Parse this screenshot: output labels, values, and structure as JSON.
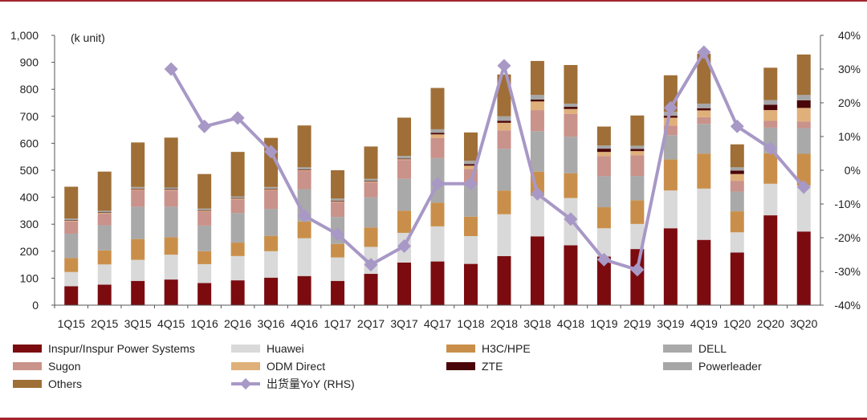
{
  "chart_data": {
    "type": "bar",
    "stacked": true,
    "unit_label": "(k unit)",
    "categories": [
      "1Q15",
      "2Q15",
      "3Q15",
      "4Q15",
      "1Q16",
      "2Q16",
      "3Q16",
      "4Q16",
      "1Q17",
      "2Q17",
      "3Q17",
      "4Q17",
      "1Q18",
      "2Q18",
      "3Q18",
      "4Q18",
      "1Q19",
      "2Q19",
      "3Q19",
      "4Q19",
      "1Q20",
      "2Q20",
      "3Q20"
    ],
    "y_left": {
      "min": 0,
      "max": 1000,
      "ticks": [
        "0",
        "100",
        "200",
        "300",
        "400",
        "500",
        "600",
        "700",
        "800",
        "900",
        "1,000"
      ]
    },
    "y_right": {
      "min": -40,
      "max": 40,
      "ticks": [
        "-40%",
        "-30%",
        "-20%",
        "-10%",
        "0%",
        "10%",
        "20%",
        "30%",
        "40%"
      ]
    },
    "series": [
      {
        "name": "Inspur/Inspur Power Systems",
        "color": "#7b0b0f",
        "values": [
          70,
          76,
          90,
          95,
          82,
          92,
          102,
          108,
          90,
          116,
          158,
          162,
          153,
          182,
          255,
          222,
          180,
          208,
          285,
          242,
          195,
          333,
          273
        ]
      },
      {
        "name": "Huawei",
        "color": "#d9d9d9",
        "values": [
          53,
          75,
          78,
          92,
          70,
          90,
          98,
          140,
          87,
          100,
          110,
          130,
          103,
          155,
          150,
          175,
          105,
          93,
          140,
          190,
          75,
          117,
          170
        ]
      },
      {
        "name": "H3C/HPE",
        "color": "#c98f4a",
        "values": [
          52,
          52,
          77,
          65,
          48,
          50,
          57,
          62,
          50,
          72,
          82,
          88,
          72,
          88,
          90,
          92,
          78,
          88,
          115,
          130,
          78,
          113,
          118
        ]
      },
      {
        "name": "DELL",
        "color": "#a9a9a9",
        "values": [
          90,
          93,
          120,
          113,
          95,
          110,
          100,
          120,
          100,
          112,
          118,
          165,
          115,
          155,
          150,
          135,
          115,
          90,
          90,
          110,
          73,
          95,
          95
        ]
      },
      {
        "name": "Sugon",
        "color": "#c9928a",
        "values": [
          45,
          43,
          62,
          60,
          52,
          50,
          70,
          68,
          55,
          55,
          70,
          75,
          62,
          68,
          78,
          85,
          75,
          77,
          35,
          25,
          40,
          25,
          25
        ]
      },
      {
        "name": "ODM Direct",
        "color": "#e0b07a",
        "values": [
          3,
          3,
          3,
          3,
          3,
          3,
          3,
          3,
          3,
          3,
          3,
          13,
          12,
          28,
          32,
          18,
          15,
          15,
          30,
          25,
          25,
          40,
          50
        ]
      },
      {
        "name": "ZTE",
        "color": "#4a0508",
        "values": [
          2,
          2,
          2,
          2,
          2,
          2,
          2,
          2,
          2,
          2,
          2,
          6,
          6,
          7,
          7,
          8,
          12,
          8,
          7,
          8,
          13,
          20,
          28
        ]
      },
      {
        "name": "Powerleader",
        "color": "#a6a6a6",
        "values": [
          6,
          6,
          6,
          6,
          6,
          6,
          6,
          8,
          8,
          8,
          10,
          13,
          12,
          17,
          17,
          12,
          12,
          12,
          15,
          17,
          12,
          17,
          20
        ]
      },
      {
        "name": "Others",
        "color": "#9f6f37",
        "values": [
          118,
          145,
          165,
          185,
          128,
          165,
          182,
          155,
          105,
          120,
          142,
          153,
          105,
          155,
          126,
          143,
          70,
          112,
          135,
          185,
          85,
          120,
          150
        ]
      }
    ],
    "line": {
      "name": "出货量YoY (RHS)",
      "color": "#a898c6",
      "start_index": 3,
      "values": [
        30,
        13,
        15.5,
        5.5,
        -13.5,
        -19,
        -28,
        -22.5,
        -4,
        -4,
        31,
        -7,
        -14.5,
        -26.5,
        -29.5,
        18.5,
        35,
        13,
        6.5,
        -5
      ]
    }
  }
}
